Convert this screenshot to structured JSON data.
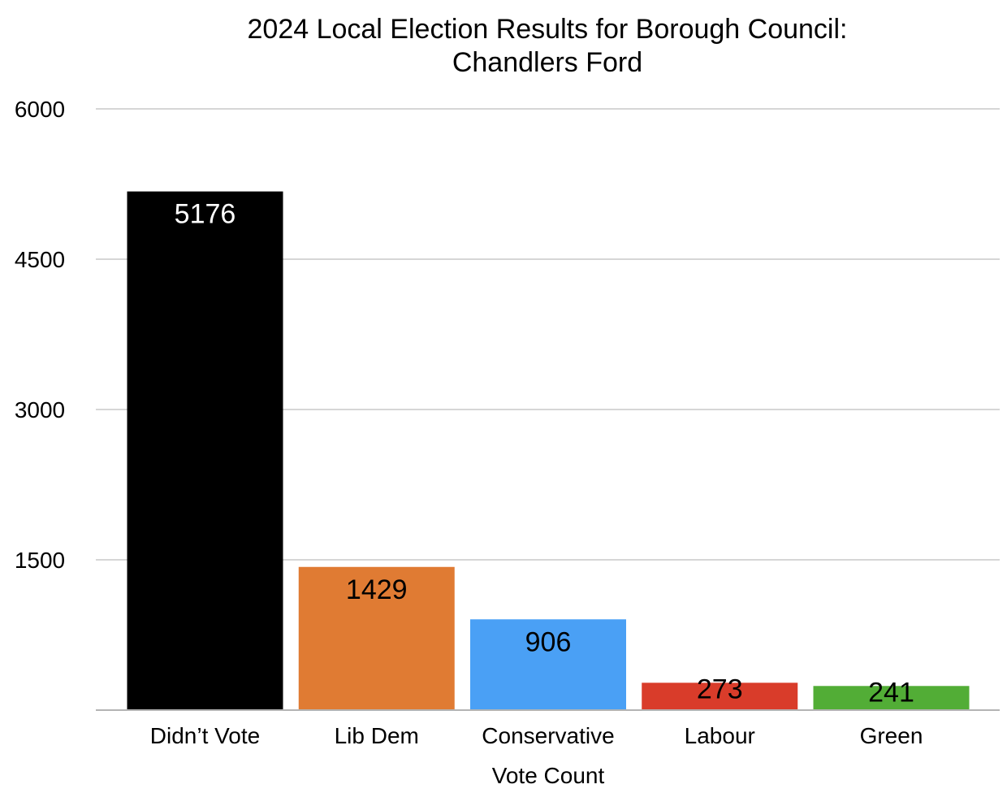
{
  "chart_data": {
    "type": "bar",
    "title": "2024 Local Election Results for Borough Council:",
    "subtitle": "Chandlers Ford",
    "xlabel": "Vote Count",
    "ylabel": "",
    "ylim": [
      0,
      6000
    ],
    "yticks": [
      1500,
      3000,
      4500,
      6000
    ],
    "grid": true,
    "categories": [
      "Didn’t Vote",
      "Lib Dem",
      "Conservative",
      "Labour",
      "Green"
    ],
    "values": [
      5176,
      1429,
      906,
      273,
      241
    ],
    "colors": [
      "#000000",
      "#e07b33",
      "#4aa0f5",
      "#d93c2a",
      "#52ad36"
    ],
    "label_colors": [
      "#ffffff",
      "#000000",
      "#000000",
      "#000000",
      "#000000"
    ]
  }
}
